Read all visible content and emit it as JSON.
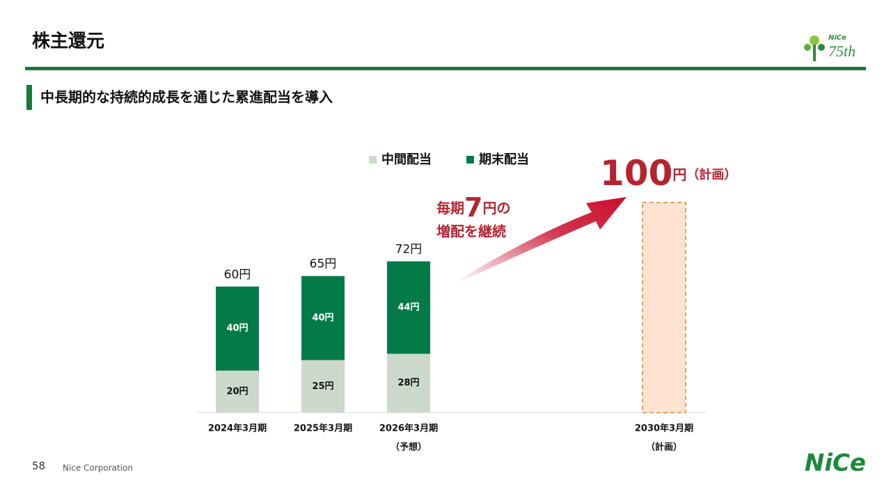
{
  "header": {
    "title": "株主還元",
    "subtitle": "中長期的な持続的成長を通じた累進配当を導入",
    "logo": {
      "brand": "NiCe",
      "anniversary": "75th"
    }
  },
  "chart_data": {
    "type": "bar",
    "stacked": true,
    "categories": [
      "2024年3月期",
      "2025年3月期",
      "2026年3月期",
      "2030年3月期"
    ],
    "category_notes": [
      null,
      null,
      "（予想）",
      "（計画）"
    ],
    "series": [
      {
        "name": "中間配当",
        "color": "#cdd9cc",
        "values": [
          20,
          25,
          28,
          null
        ],
        "value_labels": [
          "20円",
          "25円",
          "28円",
          null
        ]
      },
      {
        "name": "期末配当",
        "color": "#047a48",
        "values": [
          40,
          40,
          44,
          null
        ],
        "value_labels": [
          "40円",
          "40円",
          "44円",
          null
        ]
      }
    ],
    "totals": {
      "values": [
        60,
        65,
        72
      ],
      "value_labels": [
        "60円",
        "65円",
        "72円"
      ]
    },
    "plan": {
      "value": 100,
      "value_label": "100",
      "unit": "円",
      "note": "（計画）",
      "color": "#fde3d0",
      "border": "#e8a060"
    },
    "annotation": {
      "prefix": "毎期",
      "amount": "7",
      "suffix": "円の",
      "line2": "増配を継続",
      "color": "#b5232f"
    }
  },
  "footer": {
    "page": "58",
    "company": "Nice Corporation"
  }
}
